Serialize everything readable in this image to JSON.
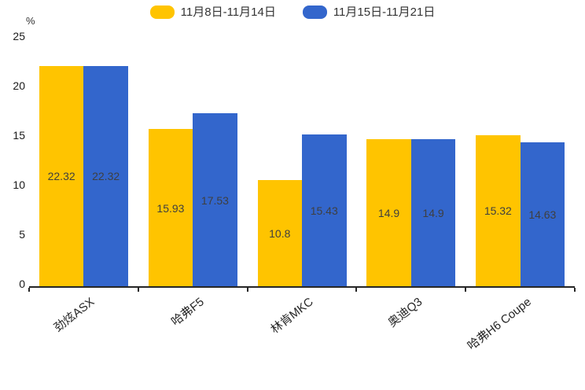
{
  "chart_data": {
    "type": "bar",
    "title": "",
    "categories": [
      "劲炫ASX",
      "哈弗F5",
      "林肯MKC",
      "奥迪Q3",
      "哈弗H6 Coupe"
    ],
    "series": [
      {
        "name": "11月8日-11月14日",
        "color": "#FFC400",
        "values": [
          22.32,
          15.93,
          10.8,
          14.9,
          15.32
        ]
      },
      {
        "name": "11月15日-11月21日",
        "color": "#3366CC",
        "values": [
          22.32,
          17.53,
          15.43,
          14.9,
          14.63
        ]
      }
    ],
    "value_labels": [
      [
        "22.32",
        "15.93",
        "10.8",
        "14.9",
        "15.32"
      ],
      [
        "22.32",
        "17.53",
        "15.43",
        "14.9",
        "14.63"
      ]
    ],
    "xlabel": "",
    "ylabel": "%",
    "ylim": [
      0,
      25
    ],
    "yticks": [
      0,
      5,
      10,
      15,
      20,
      25
    ],
    "grid": false,
    "legend_position": "top",
    "value_labels_shown": true,
    "colors": {
      "axis": "#262626",
      "tick_text": "#1a1a1a",
      "bar_label_text": "#3f3f3f",
      "legend_text": "#333333"
    }
  }
}
